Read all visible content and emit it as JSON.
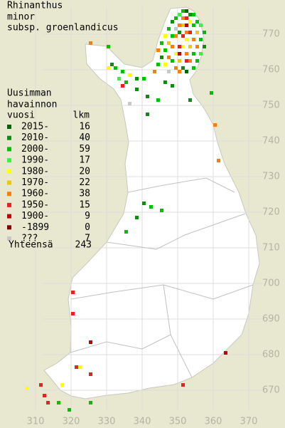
{
  "title": [
    "Rhinanthus",
    "minor",
    "subsp. groenlandicus"
  ],
  "legend": {
    "heading": [
      "Uusimman",
      "havainnon",
      "vuosi"
    ],
    "count_label": "lkm",
    "rows": [
      {
        "label": "2015-",
        "count": 16,
        "color": "#006400"
      },
      {
        "label": "2010-",
        "count": 40,
        "color": "#108c10"
      },
      {
        "label": "2000-",
        "count": 59,
        "color": "#00c000"
      },
      {
        "label": "1990-",
        "count": 17,
        "color": "#40f040"
      },
      {
        "label": "1980-",
        "count": 20,
        "color": "#ffff00"
      },
      {
        "label": "1970-",
        "count": 22,
        "color": "#f0c800"
      },
      {
        "label": "1960-",
        "count": 38,
        "color": "#ff7f00"
      },
      {
        "label": "1950-",
        "count": 15,
        "color": "#e82020"
      },
      {
        "label": "1900-",
        "count": 9,
        "color": "#c00000"
      },
      {
        "label": "-1899",
        "count": 0,
        "color": "#800000"
      },
      {
        "label": "???",
        "count": 7,
        "color": "#c8c8c8"
      }
    ],
    "total_label": "Yhteensä",
    "total": 243
  },
  "y_ticks": [
    770,
    760,
    750,
    740,
    730,
    720,
    710,
    700,
    690,
    680,
    670
  ],
  "x_ticks": [
    310,
    320,
    330,
    340,
    350,
    360,
    370
  ],
  "observations": [
    [
      360,
      744,
      6
    ],
    [
      361,
      734,
      6
    ],
    [
      359,
      753,
      2
    ],
    [
      353,
      751,
      1
    ],
    [
      341,
      747,
      1
    ],
    [
      344,
      751,
      2
    ],
    [
      341,
      752,
      1
    ],
    [
      346,
      756,
      1
    ],
    [
      348,
      755,
      1
    ],
    [
      338,
      754,
      1
    ],
    [
      342,
      721,
      2
    ],
    [
      340,
      722,
      1
    ],
    [
      345,
      720,
      2
    ],
    [
      338,
      718,
      1
    ],
    [
      335,
      714,
      2
    ],
    [
      320,
      697,
      7
    ],
    [
      320,
      691,
      7
    ],
    [
      325,
      683,
      8
    ],
    [
      321,
      676,
      7
    ],
    [
      325,
      674,
      7
    ],
    [
      322,
      676,
      4
    ],
    [
      317,
      671,
      4
    ],
    [
      307,
      670,
      4
    ],
    [
      311,
      671,
      7
    ],
    [
      312,
      668,
      7
    ],
    [
      313,
      666,
      7
    ],
    [
      316,
      666,
      2
    ],
    [
      319,
      664,
      2
    ],
    [
      325,
      666,
      2
    ],
    [
      351,
      671,
      7
    ],
    [
      363,
      680,
      8
    ],
    [
      336,
      750,
      10
    ],
    [
      325,
      767,
      6
    ],
    [
      330,
      766,
      2
    ],
    [
      331,
      761,
      1
    ],
    [
      332,
      760,
      2
    ],
    [
      330,
      760,
      4
    ],
    [
      334,
      759,
      2
    ],
    [
      335,
      756,
      2
    ],
    [
      334,
      755,
      7
    ],
    [
      338,
      757,
      1
    ],
    [
      340,
      757,
      2
    ],
    [
      343,
      759,
      6
    ],
    [
      336,
      758,
      4
    ],
    [
      333,
      757,
      3
    ],
    [
      351,
      776,
      2
    ],
    [
      352,
      776,
      0
    ],
    [
      353,
      775,
      1
    ],
    [
      354,
      775,
      2
    ],
    [
      350,
      775,
      3
    ],
    [
      349,
      774,
      2
    ],
    [
      351,
      774,
      6
    ],
    [
      352,
      774,
      7
    ],
    [
      353,
      773,
      4
    ],
    [
      355,
      773,
      2
    ],
    [
      348,
      773,
      1
    ],
    [
      350,
      772,
      6
    ],
    [
      351,
      772,
      5
    ],
    [
      352,
      772,
      8
    ],
    [
      354,
      772,
      2
    ],
    [
      356,
      772,
      3
    ],
    [
      347,
      771,
      2
    ],
    [
      349,
      771,
      10
    ],
    [
      350,
      770,
      1
    ],
    [
      352,
      770,
      6
    ],
    [
      353,
      770,
      7
    ],
    [
      355,
      770,
      5
    ],
    [
      357,
      770,
      2
    ],
    [
      346,
      769,
      4
    ],
    [
      348,
      769,
      2
    ],
    [
      349,
      769,
      6
    ],
    [
      351,
      769,
      7
    ],
    [
      352,
      768,
      4
    ],
    [
      354,
      768,
      6
    ],
    [
      356,
      768,
      2
    ],
    [
      345,
      767,
      2
    ],
    [
      347,
      767,
      5
    ],
    [
      348,
      766,
      6
    ],
    [
      350,
      766,
      7
    ],
    [
      351,
      766,
      4
    ],
    [
      353,
      766,
      5
    ],
    [
      355,
      766,
      6
    ],
    [
      357,
      766,
      1
    ],
    [
      344,
      765,
      6
    ],
    [
      346,
      765,
      2
    ],
    [
      349,
      764,
      4
    ],
    [
      350,
      764,
      8
    ],
    [
      352,
      764,
      6
    ],
    [
      354,
      764,
      2
    ],
    [
      356,
      764,
      3
    ],
    [
      345,
      763,
      1
    ],
    [
      347,
      763,
      6
    ],
    [
      348,
      762,
      2
    ],
    [
      350,
      762,
      5
    ],
    [
      352,
      762,
      7
    ],
    [
      353,
      762,
      6
    ],
    [
      355,
      762,
      2
    ],
    [
      344,
      761,
      2
    ],
    [
      346,
      761,
      4
    ],
    [
      349,
      760,
      6
    ],
    [
      351,
      760,
      1
    ],
    [
      354,
      760,
      2
    ],
    [
      347,
      759,
      10
    ],
    [
      350,
      759,
      6
    ],
    [
      352,
      759,
      0
    ]
  ]
}
